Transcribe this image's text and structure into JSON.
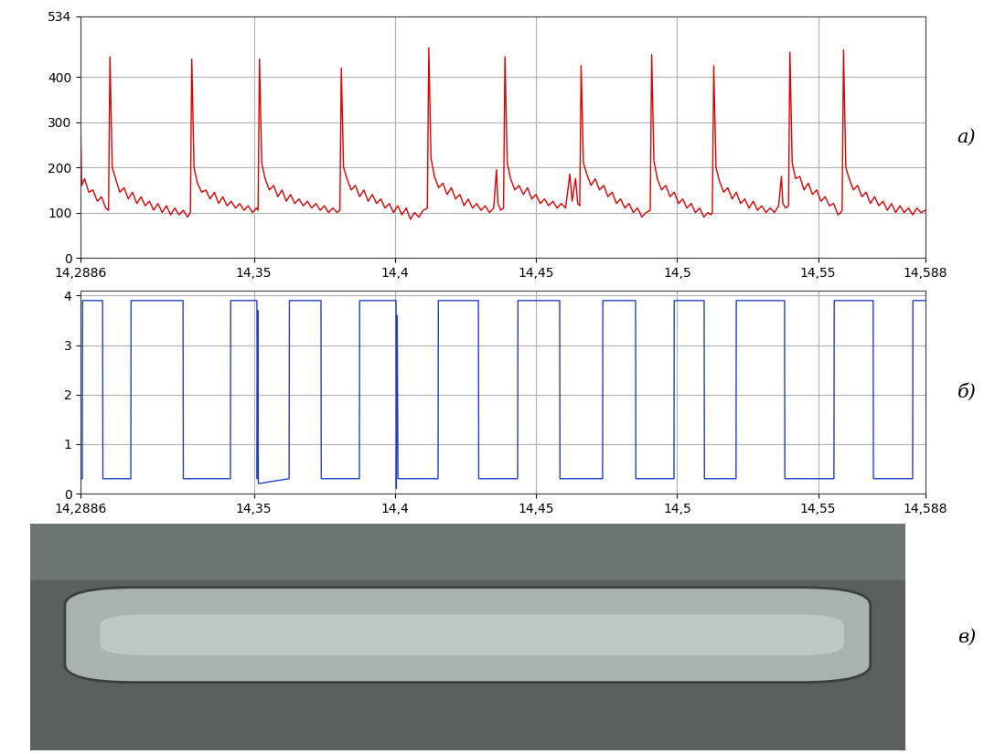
{
  "chart_data": [
    {
      "type": "line",
      "color": "#e00000",
      "grid": true,
      "annotations": [
        "а)"
      ],
      "xlim": [
        14.2886,
        14.588
      ],
      "xticks": [
        {
          "value": 14.2886,
          "label": "14,2886"
        },
        {
          "value": 14.35,
          "label": "14,35"
        },
        {
          "value": 14.4,
          "label": "14,4"
        },
        {
          "value": 14.45,
          "label": "14,45"
        },
        {
          "value": 14.5,
          "label": "14,5"
        },
        {
          "value": 14.55,
          "label": "14,55"
        },
        {
          "value": 14.588,
          "label": "14,588"
        }
      ],
      "ylim": [
        0,
        534
      ],
      "yticks": [
        0,
        100,
        200,
        300,
        400,
        534
      ],
      "x": [
        14.2886,
        14.289,
        14.29,
        14.2915,
        14.293,
        14.2945,
        14.296,
        14.2975,
        14.2985,
        14.299,
        14.2998,
        14.301,
        14.3025,
        14.304,
        14.3055,
        14.307,
        14.3085,
        14.31,
        14.3115,
        14.313,
        14.3145,
        14.316,
        14.3175,
        14.319,
        14.3205,
        14.322,
        14.3235,
        14.325,
        14.3265,
        14.3275,
        14.328,
        14.3288,
        14.33,
        14.3315,
        14.333,
        14.3345,
        14.336,
        14.3375,
        14.339,
        14.3405,
        14.342,
        14.3435,
        14.345,
        14.3465,
        14.348,
        14.3495,
        14.351,
        14.3515,
        14.352,
        14.3528,
        14.354,
        14.3555,
        14.357,
        14.3585,
        14.36,
        14.3615,
        14.363,
        14.3645,
        14.366,
        14.3675,
        14.369,
        14.3705,
        14.372,
        14.3735,
        14.375,
        14.3765,
        14.378,
        14.3795,
        14.3805,
        14.381,
        14.3818,
        14.383,
        14.3845,
        14.386,
        14.3875,
        14.389,
        14.3905,
        14.392,
        14.3935,
        14.395,
        14.3965,
        14.398,
        14.3995,
        14.401,
        14.4025,
        14.404,
        14.4055,
        14.407,
        14.4085,
        14.41,
        14.4115,
        14.412,
        14.4128,
        14.414,
        14.4155,
        14.417,
        14.4185,
        14.42,
        14.4215,
        14.423,
        14.4245,
        14.426,
        14.4275,
        14.429,
        14.4305,
        14.432,
        14.4335,
        14.435,
        14.436,
        14.4365,
        14.4375,
        14.4385,
        14.439,
        14.4398,
        14.441,
        14.4425,
        14.444,
        14.4455,
        14.447,
        14.4485,
        14.45,
        14.4515,
        14.453,
        14.4545,
        14.456,
        14.4575,
        14.459,
        14.4605,
        14.462,
        14.4628,
        14.464,
        14.4648,
        14.4655,
        14.466,
        14.4668,
        14.468,
        14.4695,
        14.471,
        14.4725,
        14.474,
        14.4755,
        14.477,
        14.4785,
        14.48,
        14.4815,
        14.483,
        14.4845,
        14.486,
        14.4875,
        14.489,
        14.4905,
        14.491,
        14.4918,
        14.493,
        14.4945,
        14.496,
        14.4975,
        14.499,
        14.5005,
        14.502,
        14.5035,
        14.505,
        14.5065,
        14.508,
        14.5095,
        14.511,
        14.512,
        14.5125,
        14.513,
        14.5138,
        14.515,
        14.5165,
        14.518,
        14.5195,
        14.521,
        14.5225,
        14.524,
        14.5255,
        14.527,
        14.5285,
        14.53,
        14.5315,
        14.533,
        14.5345,
        14.536,
        14.537,
        14.5375,
        14.5385,
        14.5395,
        14.54,
        14.5408,
        14.542,
        14.5435,
        14.545,
        14.5465,
        14.548,
        14.5495,
        14.551,
        14.5525,
        14.554,
        14.5555,
        14.557,
        14.558,
        14.5585,
        14.559,
        14.5598,
        14.561,
        14.5625,
        14.564,
        14.5655,
        14.567,
        14.5685,
        14.57,
        14.5715,
        14.573,
        14.5745,
        14.576,
        14.5775,
        14.579,
        14.5805,
        14.582,
        14.5835,
        14.585,
        14.5865,
        14.588
      ],
      "values": [
        300,
        160,
        175,
        145,
        150,
        125,
        135,
        110,
        105,
        445,
        200,
        175,
        145,
        155,
        130,
        145,
        120,
        135,
        115,
        125,
        105,
        120,
        100,
        115,
        95,
        110,
        95,
        105,
        90,
        100,
        440,
        200,
        165,
        145,
        150,
        130,
        145,
        120,
        135,
        115,
        125,
        110,
        120,
        105,
        115,
        100,
        110,
        105,
        440,
        210,
        175,
        150,
        160,
        135,
        150,
        125,
        140,
        120,
        130,
        115,
        125,
        110,
        120,
        105,
        115,
        100,
        110,
        100,
        105,
        420,
        200,
        175,
        150,
        160,
        135,
        150,
        125,
        140,
        120,
        130,
        110,
        120,
        100,
        115,
        95,
        110,
        85,
        100,
        90,
        105,
        110,
        465,
        220,
        180,
        155,
        165,
        140,
        155,
        130,
        140,
        115,
        130,
        110,
        120,
        105,
        115,
        100,
        110,
        195,
        120,
        105,
        110,
        445,
        210,
        175,
        150,
        160,
        140,
        155,
        130,
        140,
        120,
        130,
        115,
        125,
        110,
        120,
        110,
        185,
        125,
        175,
        120,
        115,
        425,
        210,
        185,
        160,
        175,
        150,
        160,
        135,
        145,
        120,
        130,
        110,
        120,
        100,
        110,
        90,
        100,
        105,
        450,
        215,
        175,
        150,
        160,
        135,
        145,
        120,
        130,
        110,
        120,
        100,
        110,
        90,
        100,
        95,
        100,
        425,
        200,
        170,
        145,
        155,
        130,
        145,
        120,
        130,
        110,
        125,
        105,
        115,
        100,
        110,
        100,
        115,
        180,
        120,
        110,
        115,
        455,
        210,
        175,
        180,
        150,
        165,
        140,
        150,
        125,
        135,
        115,
        120,
        95,
        100,
        105,
        460,
        200,
        175,
        150,
        160,
        135,
        145,
        120,
        135,
        115,
        125,
        105,
        120,
        100,
        115,
        100,
        110,
        95,
        110,
        100,
        105
      ]
    },
    {
      "type": "line",
      "color": "#2040c0",
      "grid": true,
      "annotations": [
        "б)"
      ],
      "xlim": [
        14.2886,
        14.588
      ],
      "xticks": [
        {
          "value": 14.2886,
          "label": "14,2886"
        },
        {
          "value": 14.35,
          "label": "14,35"
        },
        {
          "value": 14.4,
          "label": "14,4"
        },
        {
          "value": 14.45,
          "label": "14,45"
        },
        {
          "value": 14.5,
          "label": "14,5"
        },
        {
          "value": 14.55,
          "label": "14,55"
        },
        {
          "value": 14.588,
          "label": "14,588"
        }
      ],
      "ylim": [
        0,
        4.1
      ],
      "yticks": [
        0,
        1,
        2,
        3,
        4
      ],
      "x": [
        14.2886,
        14.2892,
        14.2893,
        14.2964,
        14.2965,
        14.3064,
        14.3065,
        14.3249,
        14.325,
        14.3417,
        14.3418,
        14.3511,
        14.3512,
        14.3514,
        14.3516,
        14.3625,
        14.3626,
        14.3738,
        14.3739,
        14.3874,
        14.3875,
        14.4004,
        14.4005,
        14.4008,
        14.4011,
        14.4153,
        14.4154,
        14.4296,
        14.4297,
        14.4435,
        14.4436,
        14.4584,
        14.4585,
        14.4736,
        14.4737,
        14.4853,
        14.4854,
        14.4989,
        14.499,
        14.5096,
        14.5097,
        14.5209,
        14.521,
        14.5381,
        14.5382,
        14.5556,
        14.5557,
        14.5695,
        14.5696,
        14.5835,
        14.5836,
        14.588
      ],
      "values": [
        0.3,
        0.3,
        3.9,
        3.9,
        0.3,
        0.3,
        3.9,
        3.9,
        0.3,
        0.3,
        3.9,
        3.9,
        0.3,
        3.7,
        0.2,
        0.3,
        3.9,
        3.9,
        0.3,
        0.3,
        3.9,
        3.9,
        0.1,
        3.6,
        0.3,
        0.3,
        3.9,
        3.9,
        0.3,
        0.3,
        3.9,
        3.9,
        0.3,
        0.3,
        3.9,
        3.9,
        0.3,
        0.3,
        3.9,
        3.9,
        0.3,
        0.3,
        3.9,
        3.9,
        0.3,
        0.3,
        3.9,
        3.9,
        0.3,
        0.3,
        3.9,
        3.9
      ]
    }
  ],
  "image": {
    "label": "в)"
  }
}
